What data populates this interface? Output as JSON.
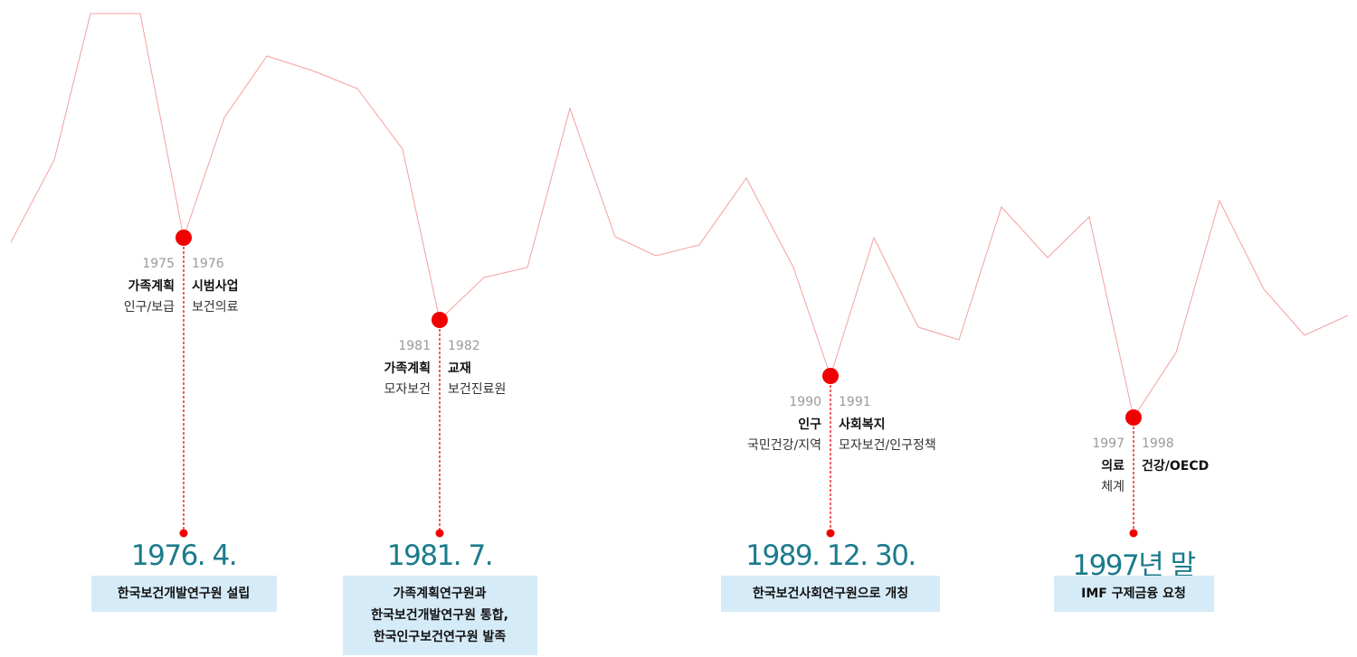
{
  "milestones": [
    {
      "left": {
        "year": "1975",
        "title": "가족계획",
        "sub": "인구/보급"
      },
      "right": {
        "year": "1976",
        "title": "시범사업",
        "sub": "보건의료"
      },
      "date": "1976. 4.",
      "description": [
        "한국보건개발연구원 설립"
      ]
    },
    {
      "left": {
        "year": "1981",
        "title": "가족계획",
        "sub": "모자보건"
      },
      "right": {
        "year": "1982",
        "title": "교재",
        "sub": "보건진료원"
      },
      "date": "1981. 7.",
      "description": [
        "가족계획연구원과",
        "한국보건개발연구원 통합,",
        "한국인구보건연구원 발족"
      ]
    },
    {
      "left": {
        "year": "1990",
        "title": "인구",
        "sub": "국민건강/지역"
      },
      "right": {
        "year": "1991",
        "title": "사회복지",
        "sub": "모자보건/인구정책"
      },
      "date": "1989. 12. 30.",
      "description": [
        "한국보건사회연구원으로 개칭"
      ]
    },
    {
      "left": {
        "year": "1997",
        "title": "의료",
        "sub": "체계"
      },
      "right": {
        "year": "1998",
        "title": "건강/OECD"
      },
      "date": "1997년 말",
      "description": [
        "IMF 구제금융 요청"
      ]
    }
  ]
}
